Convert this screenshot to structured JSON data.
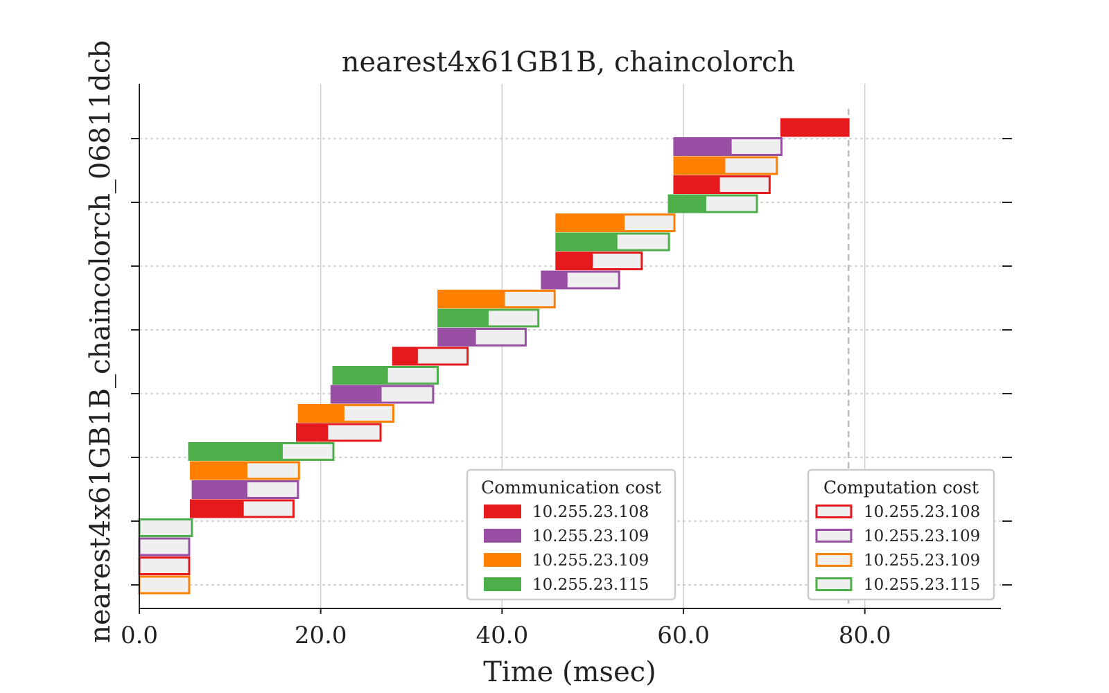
{
  "chart_data": {
    "type": "gantt",
    "title": "nearest4x61GB1B, chaincolorch",
    "xlabel": "Time (msec)",
    "ylabel": "nearest4x61GB1B_chaincolorch_06811dcb",
    "xlim": [
      0,
      95
    ],
    "x_ticks": [
      "0.0",
      "20.0",
      "40.0",
      "60.0",
      "80.0"
    ],
    "x_tick_values": [
      0,
      20,
      40,
      60,
      80
    ],
    "makespan": 78.2,
    "colors": {
      "10.255.23.108": "#e41a1c",
      "10.255.23.109-a": "#984ea3",
      "10.255.23.109-b": "#ff7f00",
      "10.255.23.115": "#4daf4a",
      "computation_fill": "#efefef"
    },
    "tasks": [
      {
        "host": "10.255.23.109-b",
        "comm_start": 0.0,
        "comm_end": 0.0,
        "comp_end": 5.5
      },
      {
        "host": "10.255.23.108",
        "comm_start": 0.0,
        "comm_end": 0.0,
        "comp_end": 5.5
      },
      {
        "host": "10.255.23.109-a",
        "comm_start": 0.0,
        "comm_end": 0.0,
        "comp_end": 5.5
      },
      {
        "host": "10.255.23.115",
        "comm_start": 0.0,
        "comm_end": 0.0,
        "comp_end": 5.8
      },
      {
        "host": "10.255.23.108",
        "comm_start": 5.7,
        "comm_end": 11.4,
        "comp_end": 17.0
      },
      {
        "host": "10.255.23.109-a",
        "comm_start": 5.9,
        "comm_end": 11.8,
        "comp_end": 17.5
      },
      {
        "host": "10.255.23.109-b",
        "comm_start": 5.7,
        "comm_end": 11.8,
        "comp_end": 17.6
      },
      {
        "host": "10.255.23.115",
        "comm_start": 5.5,
        "comm_end": 15.7,
        "comp_end": 21.4
      },
      {
        "host": "10.255.23.108",
        "comm_start": 17.4,
        "comm_end": 20.7,
        "comp_end": 26.6
      },
      {
        "host": "10.255.23.109-b",
        "comm_start": 17.6,
        "comm_end": 22.5,
        "comp_end": 28.0
      },
      {
        "host": "10.255.23.109-a",
        "comm_start": 21.2,
        "comm_end": 26.6,
        "comp_end": 32.4
      },
      {
        "host": "10.255.23.115",
        "comm_start": 21.4,
        "comm_end": 27.3,
        "comp_end": 32.9
      },
      {
        "host": "10.255.23.108",
        "comm_start": 28.0,
        "comm_end": 30.6,
        "comp_end": 36.2
      },
      {
        "host": "10.255.23.109-a",
        "comm_start": 33.0,
        "comm_end": 37.0,
        "comp_end": 42.6
      },
      {
        "host": "10.255.23.115",
        "comm_start": 33.0,
        "comm_end": 38.4,
        "comp_end": 44.0
      },
      {
        "host": "10.255.23.109-b",
        "comm_start": 33.0,
        "comm_end": 40.2,
        "comp_end": 45.8
      },
      {
        "host": "10.255.23.109-a",
        "comm_start": 44.4,
        "comm_end": 47.1,
        "comp_end": 52.9
      },
      {
        "host": "10.255.23.108",
        "comm_start": 46.0,
        "comm_end": 49.9,
        "comp_end": 55.4
      },
      {
        "host": "10.255.23.115",
        "comm_start": 46.0,
        "comm_end": 52.6,
        "comp_end": 58.4
      },
      {
        "host": "10.255.23.109-b",
        "comm_start": 46.0,
        "comm_end": 53.4,
        "comp_end": 59.0
      },
      {
        "host": "10.255.23.115",
        "comm_start": 58.4,
        "comm_end": 62.4,
        "comp_end": 68.1
      },
      {
        "host": "10.255.23.108",
        "comm_start": 59.0,
        "comm_end": 63.9,
        "comp_end": 69.5
      },
      {
        "host": "10.255.23.109-b",
        "comm_start": 59.0,
        "comm_end": 64.5,
        "comp_end": 70.3
      },
      {
        "host": "10.255.23.109-a",
        "comm_start": 59.0,
        "comm_end": 65.2,
        "comp_end": 70.8
      },
      {
        "host": "10.255.23.108",
        "comm_start": 70.8,
        "comm_end": 78.2,
        "comp_end": 78.2
      }
    ],
    "legend_communication": {
      "title": "Communication cost",
      "entries": [
        {
          "label": "10.255.23.108",
          "host": "10.255.23.108"
        },
        {
          "label": "10.255.23.109",
          "host": "10.255.23.109-a"
        },
        {
          "label": "10.255.23.109",
          "host": "10.255.23.109-b"
        },
        {
          "label": "10.255.23.115",
          "host": "10.255.23.115"
        }
      ]
    },
    "legend_computation": {
      "title": "Computation cost",
      "entries": [
        {
          "label": "10.255.23.108",
          "host": "10.255.23.108"
        },
        {
          "label": "10.255.23.109",
          "host": "10.255.23.109-a"
        },
        {
          "label": "10.255.23.109",
          "host": "10.255.23.109-b"
        },
        {
          "label": "10.255.23.115",
          "host": "10.255.23.115"
        }
      ]
    }
  }
}
